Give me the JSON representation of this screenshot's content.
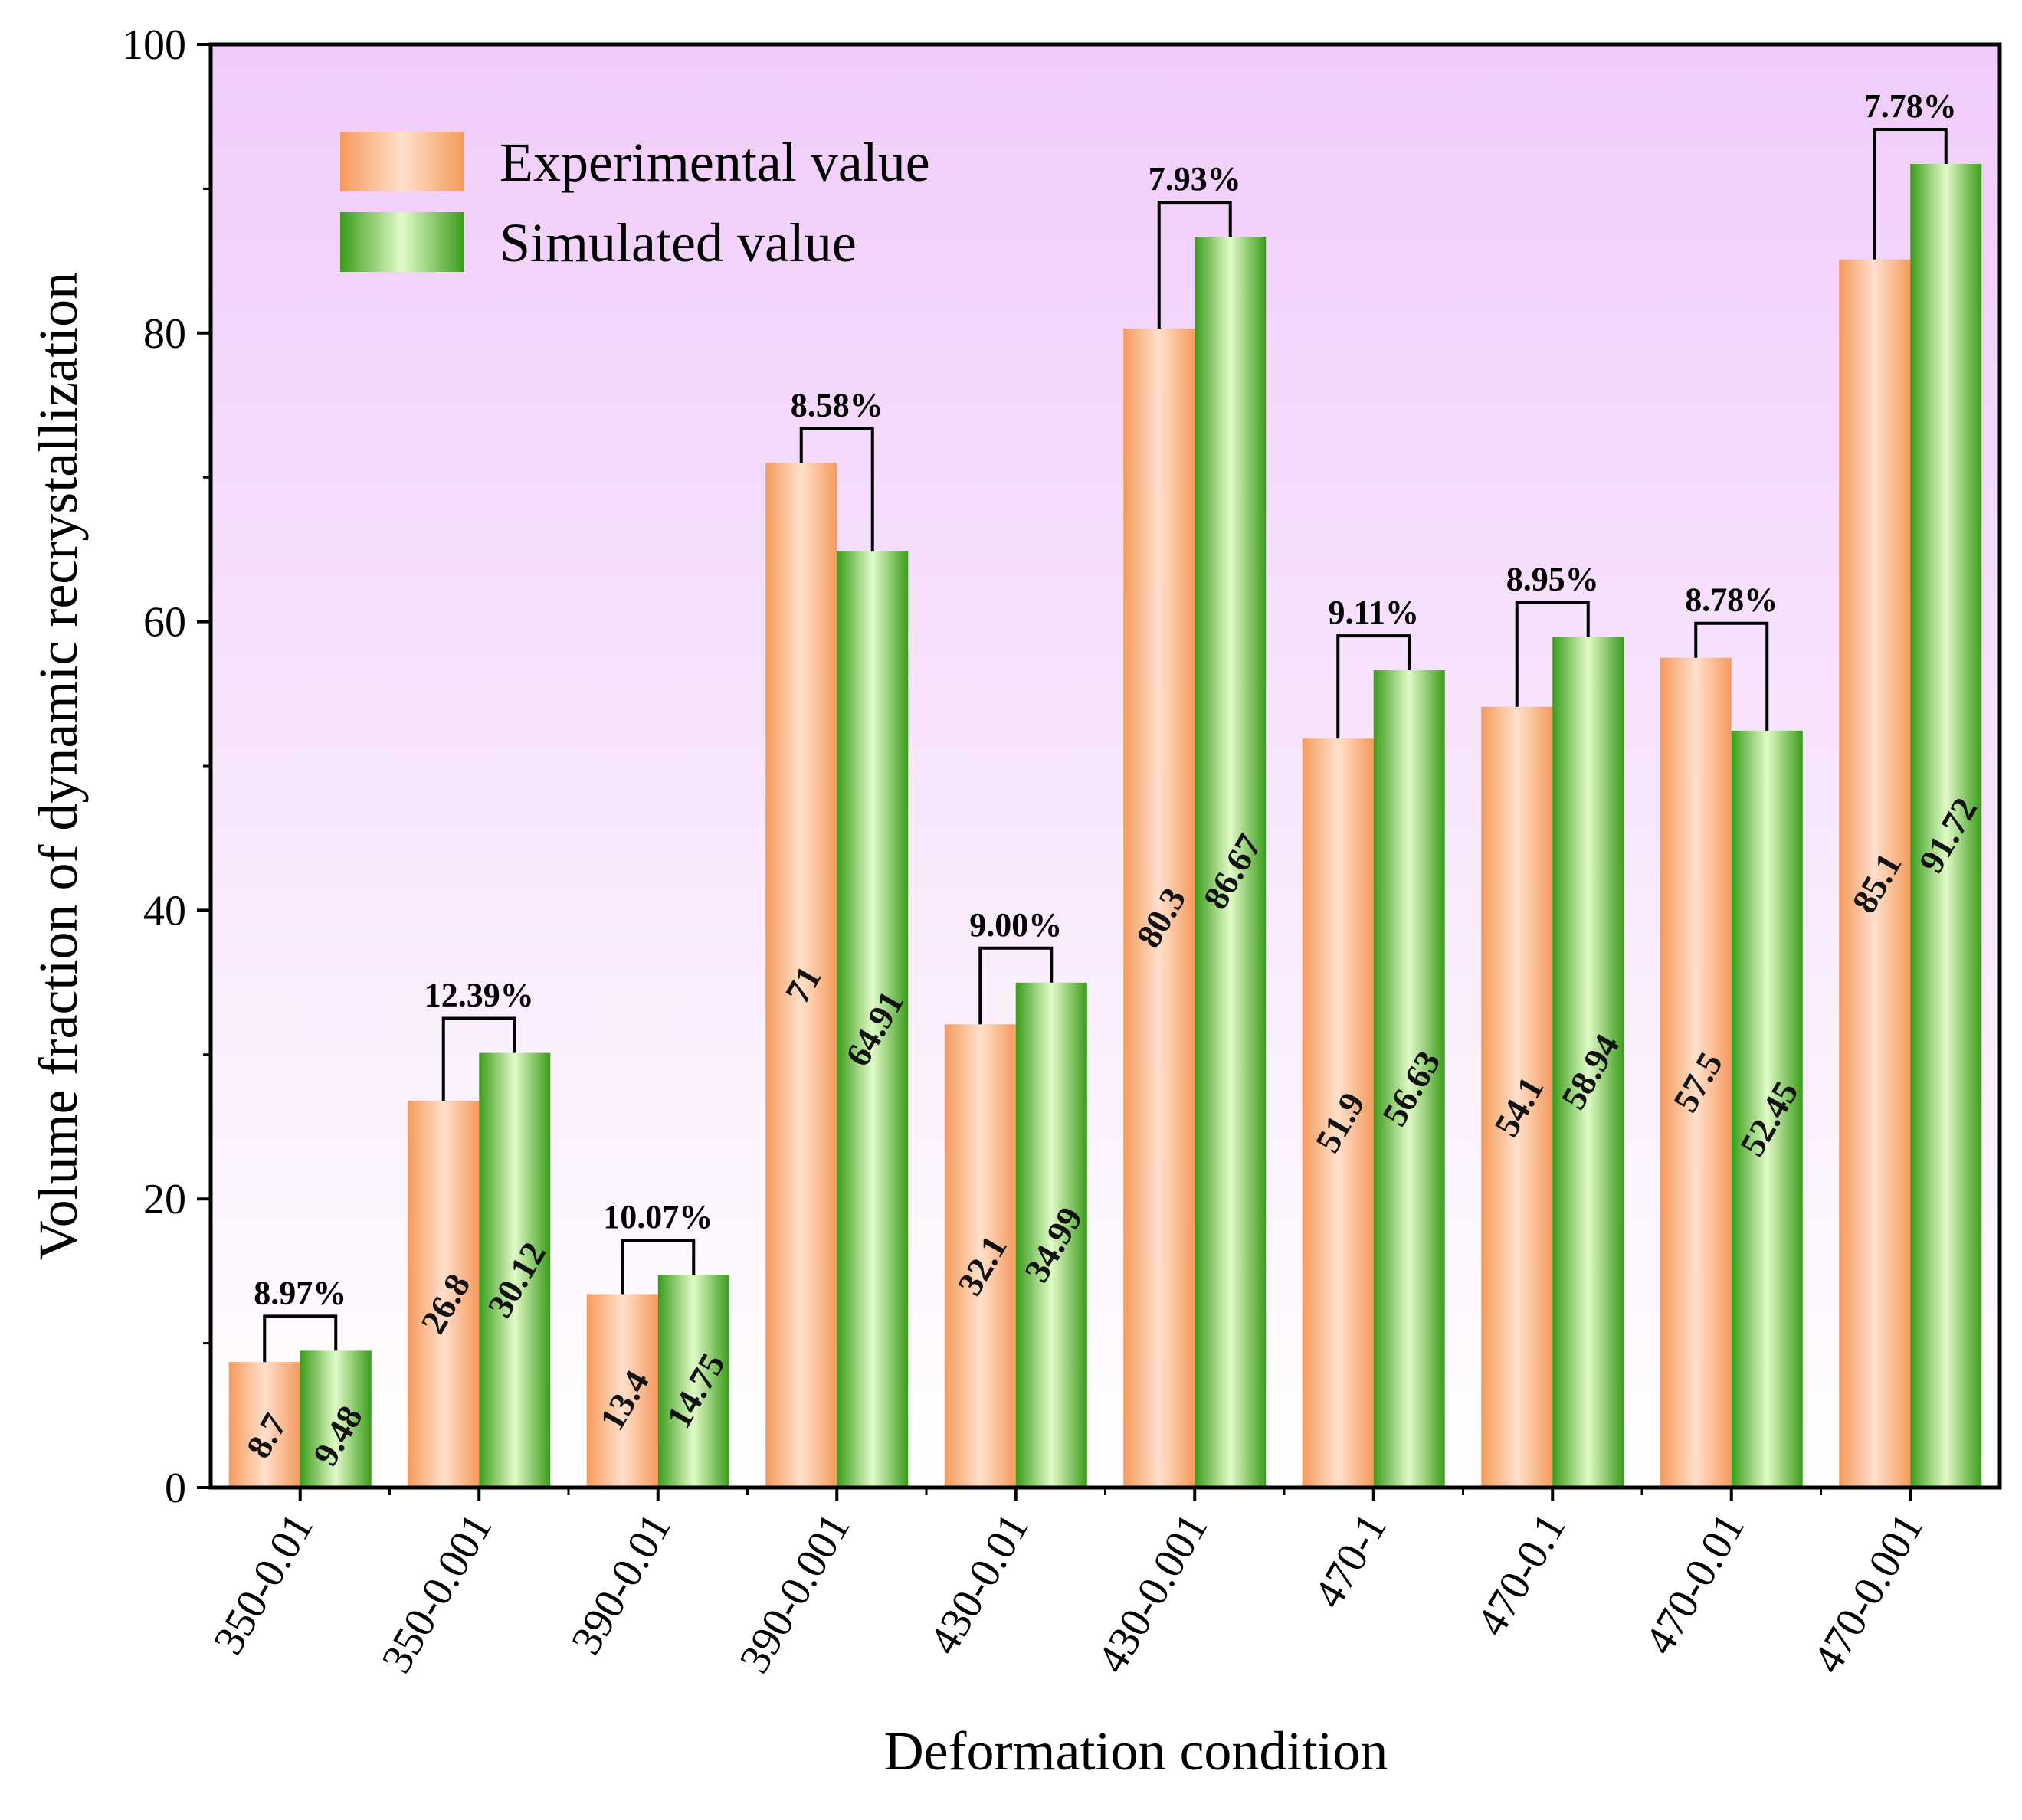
{
  "chart_data": {
    "type": "bar",
    "title": "",
    "xlabel": "Deformation condition",
    "ylabel": "Volume fraction of dynamic recrystallization",
    "ylim": [
      0,
      100
    ],
    "yticks": [
      0,
      20,
      40,
      60,
      80,
      100
    ],
    "grid": false,
    "legend_position": "top-left",
    "categories": [
      "350-0.01",
      "350-0.001",
      "390-0.01",
      "390-0.001",
      "430-0.01",
      "430-0.001",
      "470-1",
      "470-0.1",
      "470-0.01",
      "470-0.001"
    ],
    "series": [
      {
        "name": "Experimental value",
        "color": "#f4a36a",
        "values": [
          8.7,
          26.8,
          13.4,
          71,
          32.1,
          80.3,
          51.9,
          54.1,
          57.5,
          85.1
        ],
        "labels": [
          "8.7",
          "26.8",
          "13.4",
          "71",
          "32.1",
          "80.3",
          "51.9",
          "54.1",
          "57.5",
          "85.1"
        ]
      },
      {
        "name": "Simulated value",
        "color": "#4caf27",
        "values": [
          9.48,
          30.12,
          14.75,
          64.91,
          34.99,
          86.67,
          56.63,
          58.94,
          52.45,
          91.72
        ],
        "labels": [
          "9.48",
          "30.12",
          "14.75",
          "64.91",
          "34.99",
          "86.67",
          "56.63",
          "58.94",
          "52.45",
          "91.72"
        ]
      }
    ],
    "error_annotations": [
      "8.97%",
      "12.39%",
      "10.07%",
      "8.58%",
      "9.00%",
      "7.93%",
      "9.11%",
      "8.95%",
      "8.78%",
      "7.78%"
    ],
    "colors": {
      "background_top": "#f0ccfa",
      "background_bottom": "#ffffff",
      "axis": "#000000"
    }
  }
}
